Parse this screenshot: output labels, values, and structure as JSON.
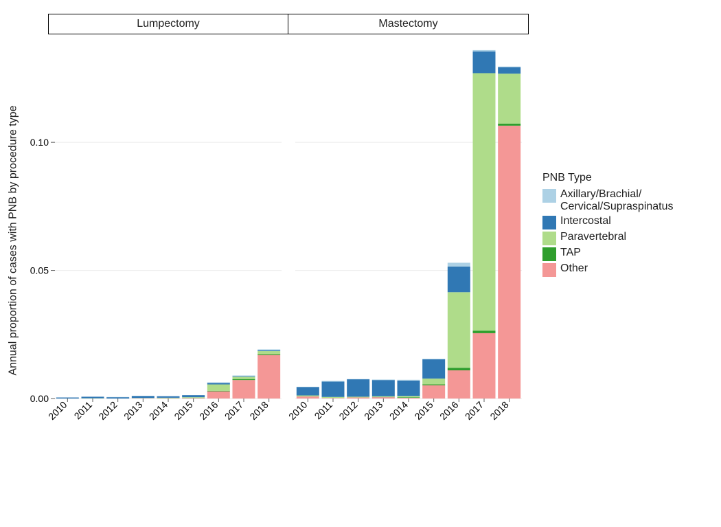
{
  "chart": {
    "type": "faceted-stacked-bar",
    "ylabel": "Annual proportion of cases with PNB by procedure type",
    "ylim": [
      0,
      0.14
    ],
    "ytick_labels": [
      "0.00",
      "0.05",
      "0.10"
    ],
    "ytick_values": [
      0.0,
      0.05,
      0.1
    ],
    "background_color": "#ffffff",
    "grid_color": "#ebebeb",
    "bar_width": 0.9,
    "categories": [
      "2010",
      "2011",
      "2012",
      "2013",
      "2014",
      "2015",
      "2016",
      "2017",
      "2018"
    ],
    "facets": [
      "Lumpectomy",
      "Mastectomy"
    ],
    "legend_title": "PNB Type",
    "legend_items": [
      {
        "key": "axillary",
        "label": "Axillary/Brachial/\nCervical/Supraspinatus",
        "color": "#add1e5"
      },
      {
        "key": "intercostal",
        "label": "Intercostal",
        "color": "#3078b4"
      },
      {
        "key": "paravertebral",
        "label": "Paravertebral",
        "color": "#afdc8a"
      },
      {
        "key": "tap",
        "label": "TAP",
        "color": "#2f9e2d"
      },
      {
        "key": "other",
        "label": "Other",
        "color": "#f49796"
      }
    ],
    "series_colors": {
      "Other": "#f49796",
      "TAP": "#2f9e2d",
      "Paravertebral": "#afdc8a",
      "Intercostal": "#3078b4",
      "Axillary": "#add1e5"
    },
    "stack_order": [
      "Other",
      "TAP",
      "Paravertebral",
      "Intercostal",
      "Axillary"
    ],
    "data": {
      "Lumpectomy": [
        {
          "year": "2010",
          "Other": 0.0,
          "TAP": 0.0,
          "Paravertebral": 0.0,
          "Intercostal": 0.0004,
          "Axillary": 0.0
        },
        {
          "year": "2011",
          "Other": 0.0,
          "TAP": 0.0,
          "Paravertebral": 0.0001,
          "Intercostal": 0.0006,
          "Axillary": 0.0
        },
        {
          "year": "2012",
          "Other": 0.0,
          "TAP": 0.0,
          "Paravertebral": 0.0,
          "Intercostal": 0.0005,
          "Axillary": 0.0001
        },
        {
          "year": "2013",
          "Other": 0.0001,
          "TAP": 0.0,
          "Paravertebral": 0.0001,
          "Intercostal": 0.0008,
          "Axillary": 0.0
        },
        {
          "year": "2014",
          "Other": 0.0001,
          "TAP": 0.0001,
          "Paravertebral": 0.0001,
          "Intercostal": 0.0006,
          "Axillary": 0.0
        },
        {
          "year": "2015",
          "Other": 0.0002,
          "TAP": 0.0001,
          "Paravertebral": 0.0002,
          "Intercostal": 0.0008,
          "Axillary": 0.0
        },
        {
          "year": "2016",
          "Other": 0.0028,
          "TAP": 0.0002,
          "Paravertebral": 0.0025,
          "Intercostal": 0.0006,
          "Axillary": 0.0002
        },
        {
          "year": "2017",
          "Other": 0.0072,
          "TAP": 0.0004,
          "Paravertebral": 0.0009,
          "Intercostal": 0.0002,
          "Axillary": 0.0003
        },
        {
          "year": "2018",
          "Other": 0.017,
          "TAP": 0.0003,
          "Paravertebral": 0.0012,
          "Intercostal": 0.0003,
          "Axillary": 0.0004
        }
      ],
      "Mastectomy": [
        {
          "year": "2010",
          "Other": 0.0008,
          "TAP": 0.0,
          "Paravertebral": 0.0004,
          "Intercostal": 0.0033,
          "Axillary": 0.0001
        },
        {
          "year": "2011",
          "Other": 0.0002,
          "TAP": 0.0,
          "Paravertebral": 0.0004,
          "Intercostal": 0.006,
          "Axillary": 0.0003
        },
        {
          "year": "2012",
          "Other": 0.0004,
          "TAP": 0.0,
          "Paravertebral": 0.0003,
          "Intercostal": 0.0068,
          "Axillary": 0.0001
        },
        {
          "year": "2013",
          "Other": 0.0005,
          "TAP": 0.0001,
          "Paravertebral": 0.0003,
          "Intercostal": 0.0063,
          "Axillary": 0.0002
        },
        {
          "year": "2014",
          "Other": 0.0003,
          "TAP": 0.0002,
          "Paravertebral": 0.0005,
          "Intercostal": 0.006,
          "Axillary": 0.0003
        },
        {
          "year": "2015",
          "Other": 0.0052,
          "TAP": 0.0003,
          "Paravertebral": 0.0023,
          "Intercostal": 0.0075,
          "Axillary": 0.0002
        },
        {
          "year": "2016",
          "Other": 0.011,
          "TAP": 0.001,
          "Paravertebral": 0.0295,
          "Intercostal": 0.01,
          "Axillary": 0.0015
        },
        {
          "year": "2017",
          "Other": 0.0255,
          "TAP": 0.001,
          "Paravertebral": 0.1005,
          "Intercostal": 0.0085,
          "Axillary": 0.0005
        },
        {
          "year": "2018",
          "Other": 0.1065,
          "TAP": 0.0008,
          "Paravertebral": 0.0195,
          "Intercostal": 0.0025,
          "Axillary": 0.0003
        }
      ]
    }
  }
}
